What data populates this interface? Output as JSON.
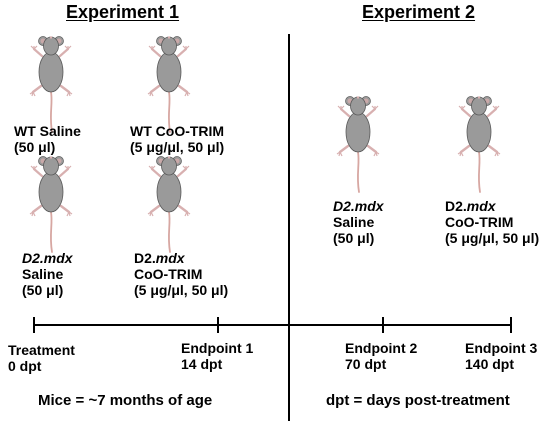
{
  "experiment1": {
    "title": "Experiment 1",
    "groups": [
      {
        "line1": "WT Saline",
        "line2": "(50 μl)"
      },
      {
        "line1": "WT CoO-TRIM",
        "line2": "(5 μg/μl, 50 μl)"
      },
      {
        "line1_italic": "D2.mdx",
        "line2": "Saline",
        "line3": "(50 μl)"
      },
      {
        "line1_pre": "D2.",
        "line1_italic": "mdx",
        "line2": "CoO-TRIM",
        "line3": "(5 μg/μl, 50 μl)"
      }
    ]
  },
  "experiment2": {
    "title": "Experiment 2",
    "groups": [
      {
        "line1_italic": "D2.mdx",
        "line2": "Saline",
        "line3": "(50 μl)"
      },
      {
        "line1_pre": "D2.",
        "line1_italic": "mdx",
        "line2": "CoO-TRIM",
        "line3": "(5 μg/μl, 50 μl)"
      }
    ]
  },
  "timeline": {
    "points": [
      {
        "line1": "Treatment",
        "line2": "0 dpt"
      },
      {
        "line1": "Endpoint 1",
        "line2": "14 dpt"
      },
      {
        "line1": "Endpoint 2",
        "line2": "70 dpt"
      },
      {
        "line1": "Endpoint 3",
        "line2": "140 dpt"
      }
    ]
  },
  "footer": {
    "left": "Mice = ~7 months of age",
    "right": "dpt = days post-treatment"
  },
  "colors": {
    "mouse_body": "#9a9a9a",
    "mouse_outline": "#5a5a5a",
    "mouse_ear": "#c9a9a9",
    "mouse_paw": "#d8b0b0",
    "mouse_tail": "#d7a7a2"
  }
}
